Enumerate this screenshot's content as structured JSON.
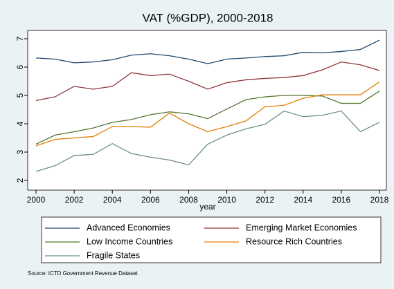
{
  "chart_data": {
    "type": "line",
    "title": "VAT (%GDP), 2000-2018",
    "xlabel": "year",
    "source": "Source: ICTD Government Revenue Dataset",
    "x": [
      2000,
      2001,
      2002,
      2003,
      2004,
      2005,
      2006,
      2007,
      2008,
      2009,
      2010,
      2011,
      2012,
      2013,
      2014,
      2015,
      2016,
      2017,
      2018
    ],
    "xlim": [
      2000,
      2018
    ],
    "xticks": [
      2000,
      2002,
      2004,
      2006,
      2008,
      2010,
      2012,
      2014,
      2016,
      2018
    ],
    "ylim": [
      2,
      7
    ],
    "yticks": [
      2,
      3,
      4,
      5,
      6,
      7
    ],
    "series": [
      {
        "name": "Advanced Economies",
        "color": "#1a476f",
        "values": [
          6.32,
          6.28,
          6.15,
          6.18,
          6.26,
          6.42,
          6.47,
          6.4,
          6.28,
          6.12,
          6.28,
          6.32,
          6.37,
          6.4,
          6.52,
          6.5,
          6.55,
          6.62,
          6.95
        ]
      },
      {
        "name": "Emerging Market Economies",
        "color": "#90353b",
        "values": [
          4.82,
          4.95,
          5.32,
          5.22,
          5.32,
          5.8,
          5.7,
          5.75,
          5.5,
          5.22,
          5.45,
          5.55,
          5.6,
          5.63,
          5.7,
          5.9,
          6.18,
          6.08,
          5.88
        ]
      },
      {
        "name": "Low Income Countries",
        "color": "#55752f",
        "values": [
          3.28,
          3.6,
          3.72,
          3.85,
          4.05,
          4.15,
          4.32,
          4.42,
          4.35,
          4.18,
          4.52,
          4.85,
          4.95,
          5.0,
          5.0,
          4.98,
          4.72,
          4.72,
          5.15
        ]
      },
      {
        "name": "Resource Rich Countries",
        "color": "#e37e00",
        "values": [
          3.22,
          3.45,
          3.5,
          3.55,
          3.9,
          3.9,
          3.88,
          4.38,
          4.0,
          3.72,
          3.9,
          4.1,
          4.6,
          4.65,
          4.9,
          5.02,
          5.02,
          5.02,
          5.48
        ]
      },
      {
        "name": "Fragile States",
        "color": "#6e8e84",
        "values": [
          2.32,
          2.52,
          2.88,
          2.92,
          3.3,
          2.95,
          2.82,
          2.72,
          2.55,
          3.28,
          3.6,
          3.82,
          3.98,
          4.45,
          4.25,
          4.3,
          4.45,
          3.72,
          4.05
        ]
      }
    ]
  }
}
